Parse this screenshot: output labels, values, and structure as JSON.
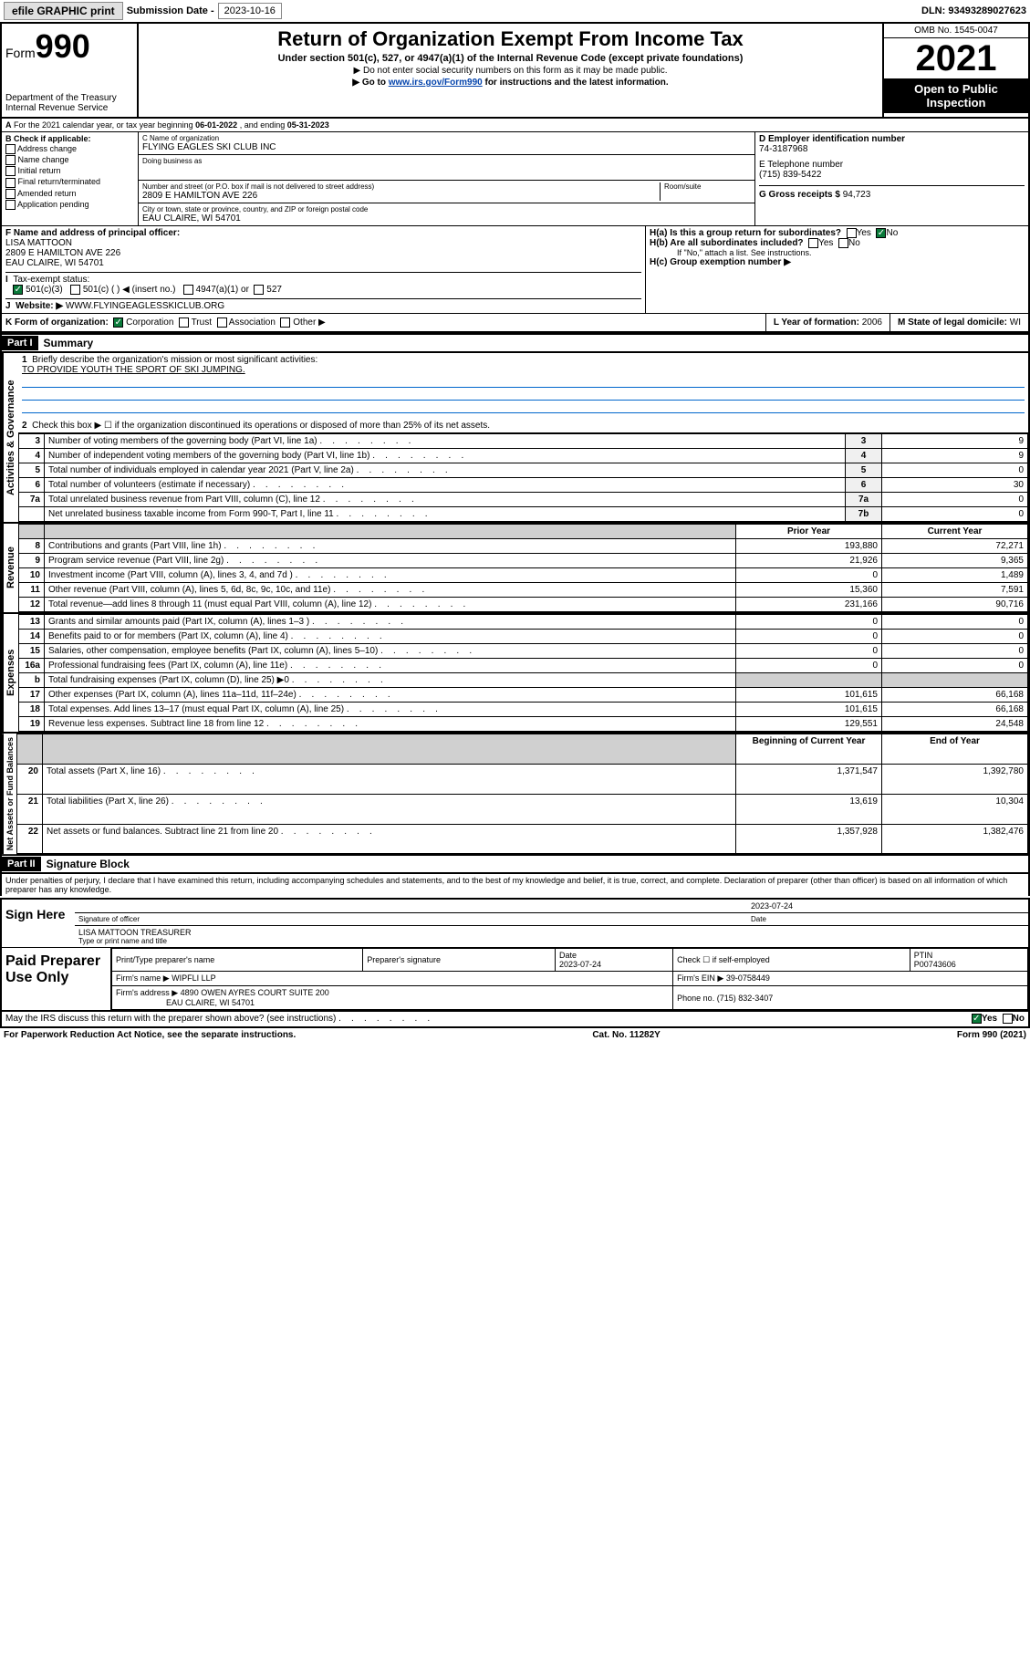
{
  "topbar": {
    "efile_btn": "efile GRAPHIC print",
    "sub_label": "Submission Date -",
    "sub_date": "2023-10-16",
    "dln_label": "DLN:",
    "dln": "93493289027623"
  },
  "header": {
    "form_prefix": "Form",
    "form_num": "990",
    "dept": "Department of the Treasury",
    "irs": "Internal Revenue Service",
    "title": "Return of Organization Exempt From Income Tax",
    "sub": "Under section 501(c), 527, or 4947(a)(1) of the Internal Revenue Code (except private foundations)",
    "line1": "▶ Do not enter social security numbers on this form as it may be made public.",
    "line2_pre": "▶ Go to ",
    "line2_link": "www.irs.gov/Form990",
    "line2_post": " for instructions and the latest information.",
    "omb": "OMB No. 1545-0047",
    "year": "2021",
    "open": "Open to Public Inspection"
  },
  "line_a": {
    "text_pre": "For the 2021 calendar year, or tax year beginning ",
    "begin": "06-01-2022",
    "mid": " , and ending ",
    "end": "05-31-2023"
  },
  "box_b": {
    "label": "B Check if applicable:",
    "opts": [
      "Address change",
      "Name change",
      "Initial return",
      "Final return/terminated",
      "Amended return",
      "Application pending"
    ]
  },
  "box_c": {
    "name_lbl": "C Name of organization",
    "name": "FLYING EAGLES SKI CLUB INC",
    "dba_lbl": "Doing business as",
    "dba": "",
    "street_lbl": "Number and street (or P.O. box if mail is not delivered to street address)",
    "room_lbl": "Room/suite",
    "street": "2809 E HAMILTON AVE 226",
    "city_lbl": "City or town, state or province, country, and ZIP or foreign postal code",
    "city": "EAU CLAIRE, WI  54701"
  },
  "box_d": {
    "lbl": "D Employer identification number",
    "val": "74-3187968"
  },
  "box_e": {
    "lbl": "E Telephone number",
    "val": "(715) 839-5422"
  },
  "box_g": {
    "lbl": "G Gross receipts $",
    "val": "94,723"
  },
  "box_f": {
    "lbl": "F Name and address of principal officer:",
    "name": "LISA MATTOON",
    "addr1": "2809 E HAMILTON AVE 226",
    "addr2": "EAU CLAIRE, WI  54701"
  },
  "box_h": {
    "a": "H(a)  Is this a group return for subordinates?",
    "a_yes": "Yes",
    "a_no": "No",
    "b": "H(b)  Are all subordinates included?",
    "b_yes": "Yes",
    "b_no": "No",
    "b_note": "If \"No,\" attach a list. See instructions.",
    "c": "H(c)  Group exemption number ▶"
  },
  "box_i": {
    "lbl": "Tax-exempt status:",
    "opt1": "501(c)(3)",
    "opt2": "501(c) (   ) ◀ (insert no.)",
    "opt3": "4947(a)(1) or",
    "opt4": "527"
  },
  "box_j": {
    "lbl": "Website: ▶",
    "val": "WWW.FLYINGEAGLESSKICLUB.ORG"
  },
  "box_k": {
    "lbl": "K Form of organization:",
    "opts": [
      "Corporation",
      "Trust",
      "Association",
      "Other ▶"
    ]
  },
  "box_l": {
    "lbl": "L Year of formation:",
    "val": "2006"
  },
  "box_m": {
    "lbl": "M State of legal domicile:",
    "val": "WI"
  },
  "part1": {
    "hdr": "Part I",
    "title": "Summary",
    "q1_lbl": "1",
    "q1": "Briefly describe the organization's mission or most significant activities:",
    "q1_val": "TO PROVIDE YOUTH THE SPORT OF SKI JUMPING.",
    "q2_lbl": "2",
    "q2": "Check this box ▶ ☐  if the organization discontinued its operations or disposed of more than 25% of its net assets."
  },
  "gov_rows": [
    {
      "n": "3",
      "desc": "Number of voting members of the governing body (Part VI, line 1a)",
      "box": "3",
      "val": "9"
    },
    {
      "n": "4",
      "desc": "Number of independent voting members of the governing body (Part VI, line 1b)",
      "box": "4",
      "val": "9"
    },
    {
      "n": "5",
      "desc": "Total number of individuals employed in calendar year 2021 (Part V, line 2a)",
      "box": "5",
      "val": "0"
    },
    {
      "n": "6",
      "desc": "Total number of volunteers (estimate if necessary)",
      "box": "6",
      "val": "30"
    },
    {
      "n": "7a",
      "desc": "Total unrelated business revenue from Part VIII, column (C), line 12",
      "box": "7a",
      "val": "0"
    },
    {
      "n": "",
      "desc": "Net unrelated business taxable income from Form 990-T, Part I, line 11",
      "box": "7b",
      "val": "0"
    }
  ],
  "two_col_hdr": {
    "prior": "Prior Year",
    "current": "Current Year",
    "begin": "Beginning of Current Year",
    "end": "End of Year"
  },
  "rev_rows": [
    {
      "n": "8",
      "desc": "Contributions and grants (Part VIII, line 1h)",
      "p": "193,880",
      "c": "72,271"
    },
    {
      "n": "9",
      "desc": "Program service revenue (Part VIII, line 2g)",
      "p": "21,926",
      "c": "9,365"
    },
    {
      "n": "10",
      "desc": "Investment income (Part VIII, column (A), lines 3, 4, and 7d )",
      "p": "0",
      "c": "1,489"
    },
    {
      "n": "11",
      "desc": "Other revenue (Part VIII, column (A), lines 5, 6d, 8c, 9c, 10c, and 11e)",
      "p": "15,360",
      "c": "7,591"
    },
    {
      "n": "12",
      "desc": "Total revenue—add lines 8 through 11 (must equal Part VIII, column (A), line 12)",
      "p": "231,166",
      "c": "90,716"
    }
  ],
  "exp_rows": [
    {
      "n": "13",
      "desc": "Grants and similar amounts paid (Part IX, column (A), lines 1–3 )",
      "p": "0",
      "c": "0"
    },
    {
      "n": "14",
      "desc": "Benefits paid to or for members (Part IX, column (A), line 4)",
      "p": "0",
      "c": "0"
    },
    {
      "n": "15",
      "desc": "Salaries, other compensation, employee benefits (Part IX, column (A), lines 5–10)",
      "p": "0",
      "c": "0"
    },
    {
      "n": "16a",
      "desc": "Professional fundraising fees (Part IX, column (A), line 11e)",
      "p": "0",
      "c": "0"
    },
    {
      "n": "b",
      "desc": "Total fundraising expenses (Part IX, column (D), line 25) ▶0",
      "p": "",
      "c": "",
      "shade": true
    },
    {
      "n": "17",
      "desc": "Other expenses (Part IX, column (A), lines 11a–11d, 11f–24e)",
      "p": "101,615",
      "c": "66,168"
    },
    {
      "n": "18",
      "desc": "Total expenses. Add lines 13–17 (must equal Part IX, column (A), line 25)",
      "p": "101,615",
      "c": "66,168"
    },
    {
      "n": "19",
      "desc": "Revenue less expenses. Subtract line 18 from line 12",
      "p": "129,551",
      "c": "24,548"
    }
  ],
  "net_rows": [
    {
      "n": "20",
      "desc": "Total assets (Part X, line 16)",
      "p": "1,371,547",
      "c": "1,392,780"
    },
    {
      "n": "21",
      "desc": "Total liabilities (Part X, line 26)",
      "p": "13,619",
      "c": "10,304"
    },
    {
      "n": "22",
      "desc": "Net assets or fund balances. Subtract line 21 from line 20",
      "p": "1,357,928",
      "c": "1,382,476"
    }
  ],
  "vert": {
    "gov": "Activities & Governance",
    "rev": "Revenue",
    "exp": "Expenses",
    "net": "Net Assets or Fund Balances"
  },
  "part2": {
    "hdr": "Part II",
    "title": "Signature Block",
    "decl": "Under penalties of perjury, I declare that I have examined this return, including accompanying schedules and statements, and to the best of my knowledge and belief, it is true, correct, and complete. Declaration of preparer (other than officer) is based on all information of which preparer has any knowledge."
  },
  "sign": {
    "here": "Sign Here",
    "sig_lbl": "Signature of officer",
    "date_lbl": "Date",
    "date": "2023-07-24",
    "name": "LISA MATTOON TREASURER",
    "name_lbl": "Type or print name and title"
  },
  "prep": {
    "title": "Paid Preparer Use Only",
    "h1": "Print/Type preparer's name",
    "h2": "Preparer's signature",
    "h3": "Date",
    "h4": "Check ☐ if self-employed",
    "h5": "PTIN",
    "date": "2023-07-24",
    "ptin": "P00743606",
    "firm_lbl": "Firm's name    ▶",
    "firm": "WIPFLI LLP",
    "ein_lbl": "Firm's EIN ▶",
    "ein": "39-0758449",
    "addr_lbl": "Firm's address ▶",
    "addr1": "4890 OWEN AYRES COURT SUITE 200",
    "addr2": "EAU CLAIRE, WI  54701",
    "phone_lbl": "Phone no.",
    "phone": "(715) 832-3407"
  },
  "bottom": {
    "q": "May the IRS discuss this return with the preparer shown above? (see instructions)",
    "yes": "Yes",
    "no": "No",
    "paperwork": "For Paperwork Reduction Act Notice, see the separate instructions.",
    "cat": "Cat. No. 11282Y",
    "form": "Form 990 (2021)"
  }
}
